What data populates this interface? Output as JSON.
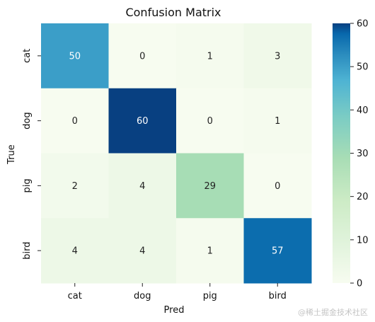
{
  "chart_data": {
    "type": "heatmap",
    "title": "Confusion Matrix",
    "xlabel": "Pred",
    "ylabel": "True",
    "x_categories": [
      "cat",
      "dog",
      "pig",
      "bird"
    ],
    "y_categories": [
      "cat",
      "dog",
      "pig",
      "bird"
    ],
    "matrix": [
      [
        50,
        0,
        1,
        3
      ],
      [
        0,
        60,
        0,
        1
      ],
      [
        2,
        4,
        29,
        0
      ],
      [
        4,
        4,
        1,
        57
      ]
    ],
    "vmin": 0,
    "vmax": 60,
    "colorbar_ticks": [
      "0",
      "10",
      "20",
      "30",
      "40",
      "50",
      "60"
    ],
    "colormap": "GnBu",
    "colorbar": true,
    "grid": false,
    "legend": "none"
  },
  "watermark": "@稀土掘金技术社区"
}
